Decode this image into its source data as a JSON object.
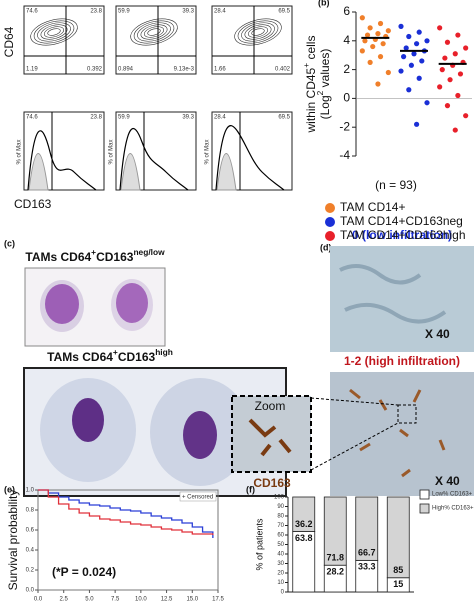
{
  "flow": {
    "y_label": "CD64",
    "x_label": "CD163",
    "hist_y_label": "% of Max",
    "contour_plots": [
      {
        "q": [
          "74.6",
          "23.8",
          "1.19",
          "0.392"
        ]
      },
      {
        "q": [
          "59.9",
          "39.3",
          "0.894",
          "9.13e-3"
        ]
      },
      {
        "q": [
          "28.4",
          "69.5",
          "1.66",
          "0.402"
        ]
      }
    ],
    "histograms": [
      [
        "74.6",
        "23.8"
      ],
      [
        "59.9",
        "39.3"
      ],
      [
        "28.4",
        "69.5"
      ]
    ]
  },
  "panel_c": {
    "label": "(c)",
    "title_1": [
      "TAMs CD64",
      "+",
      "CD163",
      "neg/low"
    ],
    "title_2": [
      "TAMs CD64",
      "+",
      "CD163",
      "high"
    ]
  },
  "panel_d": {
    "label": "(d)",
    "title_1": "0 (low infiltration)",
    "title_2": "1-2 (high infiltration)",
    "magnification_1": "X 40",
    "magnification_2": "X 40",
    "zoom": "Zoom",
    "marker": "CD163"
  },
  "chart_data": [
    {
      "type": "strip",
      "label": "(b)",
      "y_label_lines": [
        [
          "within CD45",
          "+",
          " cells"
        ],
        [
          "(Log",
          "2",
          " values)"
        ]
      ],
      "note": "(n = 93)",
      "ylim": [
        -4,
        6
      ],
      "yticks": [
        6,
        4,
        2,
        0,
        -2,
        -4
      ],
      "series": [
        {
          "name": "TAM CD14+",
          "color": "#f07f2a",
          "median": 4.2,
          "values": [
            5.6,
            5.2,
            4.9,
            4.7,
            4.5,
            4.4,
            4.3,
            4.1,
            4.0,
            3.8,
            3.6,
            3.3,
            2.9,
            2.5,
            1.8,
            1.0
          ]
        },
        {
          "name": "TAM CD14+CD163neg",
          "color": "#1a2fd6",
          "median": 3.3,
          "values": [
            5.0,
            4.6,
            4.3,
            4.0,
            3.8,
            3.5,
            3.3,
            3.1,
            2.9,
            2.6,
            2.3,
            1.9,
            1.4,
            0.6,
            -0.3,
            -1.8
          ]
        },
        {
          "name": "TAM CD14+CD163high",
          "color": "#e8202a",
          "median": 2.4,
          "values": [
            4.9,
            4.4,
            3.9,
            3.5,
            3.1,
            2.8,
            2.5,
            2.3,
            2.0,
            1.7,
            1.3,
            0.8,
            0.2,
            -0.5,
            -1.2,
            -2.2
          ]
        }
      ]
    },
    {
      "type": "survival",
      "label": "(e)",
      "y_label": "Survival probability",
      "annotation": "(*P = 0.024)",
      "legend": "+ Censored",
      "xlim": [
        0,
        17.5
      ],
      "ylim": [
        0,
        1
      ],
      "xticks": [
        {
          "value": 0,
          "label": "0.0"
        },
        {
          "value": 2.5,
          "label": "2.5"
        },
        {
          "value": 5,
          "label": "5.0"
        },
        {
          "value": 7.5,
          "label": "7.5"
        },
        {
          "value": 10,
          "label": "10.0"
        },
        {
          "value": 12.5,
          "label": "12.5"
        },
        {
          "value": 15,
          "label": "15.0"
        },
        {
          "value": 17.5,
          "label": "17.5"
        }
      ],
      "yticks": [
        {
          "value": 0,
          "label": "0.0"
        },
        0.2,
        0.4,
        0.6,
        0.8,
        {
          "value": 1,
          "label": "1.0"
        }
      ],
      "x": [
        0,
        1,
        2,
        3,
        4,
        5,
        6,
        7,
        8,
        9,
        10,
        11,
        12,
        13,
        14,
        15,
        16,
        17
      ],
      "series": [
        {
          "color": "#2a3fd6",
          "values": [
            1,
            0.97,
            0.93,
            0.9,
            0.87,
            0.85,
            0.84,
            0.82,
            0.8,
            0.79,
            0.77,
            0.74,
            0.72,
            0.7,
            0.67,
            0.63,
            0.58,
            0.52
          ]
        },
        {
          "color": "#e0303a",
          "values": [
            1,
            0.93,
            0.86,
            0.81,
            0.77,
            0.74,
            0.71,
            0.7,
            0.68,
            0.66,
            0.65,
            0.63,
            0.61,
            0.6,
            0.58,
            0.56,
            0.56,
            0.55
          ]
        }
      ]
    },
    {
      "type": "stacked_bar",
      "label": "(f)",
      "y_label": "% of patients",
      "ylim": [
        0,
        100
      ],
      "yticks": [
        0,
        10,
        20,
        30,
        40,
        50,
        60,
        70,
        80,
        90,
        100
      ],
      "categories": [
        null,
        null,
        null,
        null
      ],
      "series": [
        {
          "name": "Low% CD163+",
          "color": "#ffffff",
          "values": [
            63.8,
            28.2,
            33.3,
            15
          ]
        },
        {
          "name": "High% CD163+",
          "color": "#d4d4d4",
          "values": [
            36.2,
            71.8,
            66.7,
            85
          ]
        }
      ]
    }
  ]
}
